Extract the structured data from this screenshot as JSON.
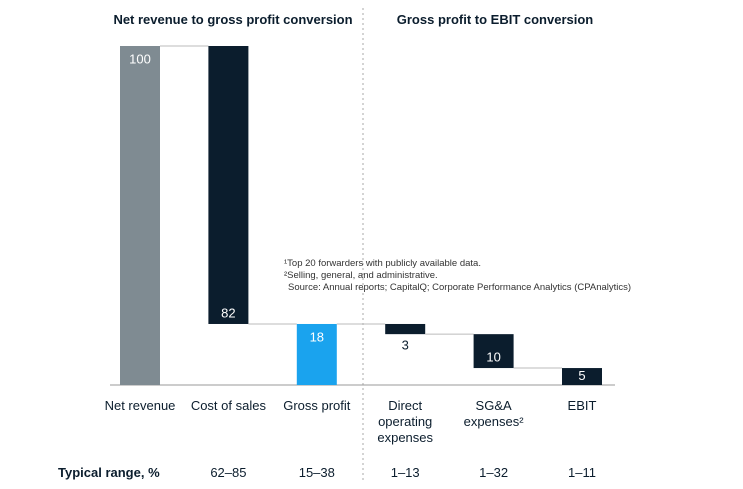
{
  "chart_data": {
    "type": "waterfall",
    "section_titles": [
      "Net revenue to gross profit conversion",
      "Gross profit to EBIT conversion"
    ],
    "categories": [
      "Net revenue",
      "Cost of sales",
      "Gross profit",
      "Direct operating expenses",
      "SG&A expenses²",
      "EBIT"
    ],
    "values": [
      100,
      82,
      18,
      3,
      10,
      5
    ],
    "measures": [
      "total",
      "decrease",
      "total",
      "decrease",
      "decrease",
      "total"
    ],
    "colors": [
      "#7f8b92",
      "#0b1d2d",
      "#1aa3ee",
      "#0b1d2d",
      "#0b1d2d",
      "#0b1d2d"
    ],
    "range_label": "Typical range, %",
    "ranges": [
      null,
      "62–85",
      "15–38",
      "1–13",
      "1–32",
      "1–11"
    ],
    "footnotes": [
      "¹Top 20 forwarders with publicly available data.",
      "²Selling, general, and administrative.",
      "Source: Annual reports; CapitalQ; Corporate Performance Analytics (CPAnalytics)"
    ]
  }
}
